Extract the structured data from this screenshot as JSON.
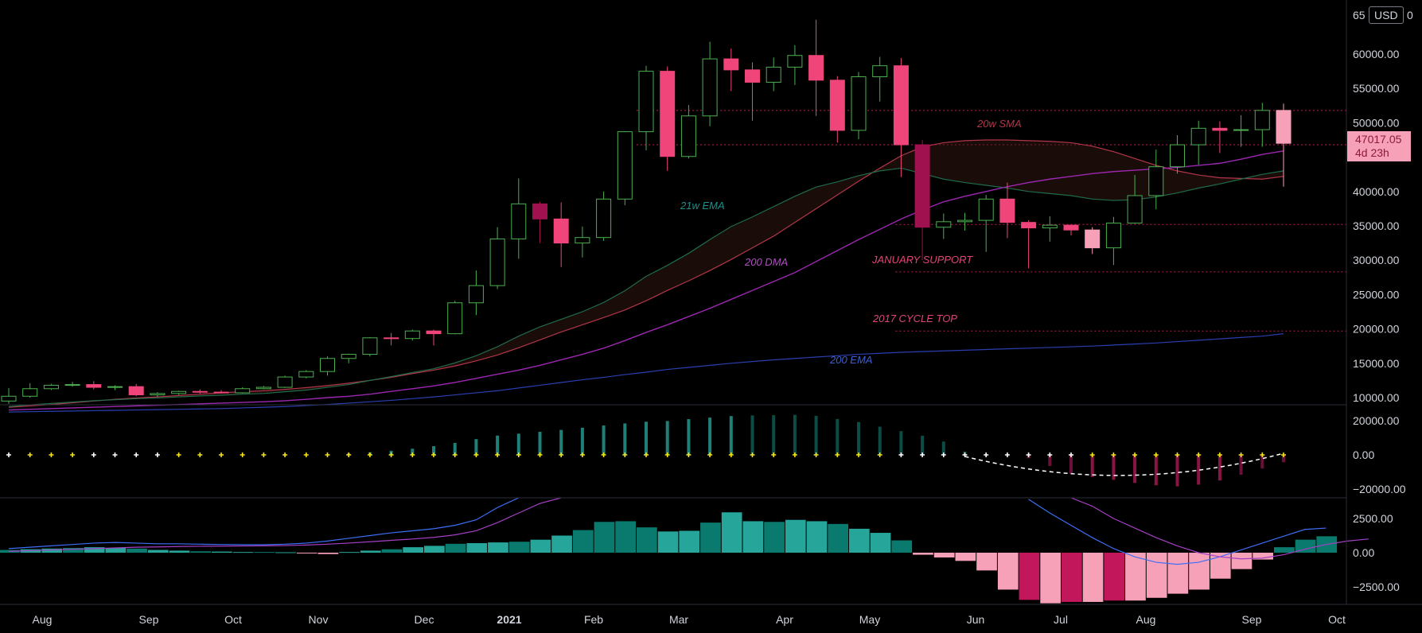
{
  "currency_badge": "USD",
  "last_price": "47017.05",
  "countdown": "4d 23h",
  "top_tick_partial": "65",
  "top_tick_tail": "0",
  "annotations": {
    "sma20w": "20w SMA",
    "ema21w": "21w EMA",
    "dma200": "200 DMA",
    "ema200": "200 EMA",
    "jan_support": "JANUARY SUPPORT",
    "cycle_top": "2017 CYCLE TOP"
  },
  "colors": {
    "background": "#000000",
    "bull_candle_border": "#4caf50",
    "bear_candle": "#f0457a",
    "bear_dark": "#a0124f",
    "light_pink": "#f7a1b8",
    "teal": "#26a69a",
    "dark_teal": "#0b7a6e",
    "magenta": "#c2185b",
    "sma_red": "#b2364a",
    "ema_green": "#1f6b4a",
    "dma_purple": "#9c27b0",
    "ema200_blue": "#2a3fb0",
    "level_line": "#c2185b"
  },
  "chart_data": [
    {
      "type": "candlestick",
      "title": "",
      "y_axis_ticks": [
        "60000.00",
        "55000.00",
        "50000.00",
        "45000.00",
        "40000.00",
        "35000.00",
        "30000.00",
        "25000.00",
        "20000.00",
        "15000.00",
        "10000.00"
      ],
      "y_axis_tick_values": [
        60000,
        55000,
        50000,
        45000,
        40000,
        35000,
        30000,
        25000,
        20000,
        15000,
        10000
      ],
      "ylim": [
        8500,
        66000
      ],
      "x_axis_ticks": [
        "Aug",
        "Sep",
        "Oct",
        "Nov",
        "Dec",
        "2021",
        "Feb",
        "Mar",
        "Apr",
        "May",
        "Jun",
        "Jul",
        "Aug",
        "Sep",
        "Oct"
      ],
      "interval": "1W",
      "candles": [
        [
          9500,
          11400,
          9100,
          10200
        ],
        [
          10200,
          12100,
          10000,
          11300
        ],
        [
          11300,
          12000,
          11100,
          11800
        ],
        [
          11800,
          12300,
          11600,
          11900
        ],
        [
          11900,
          12400,
          11200,
          11500
        ],
        [
          11500,
          11800,
          11100,
          11600
        ],
        [
          11600,
          12000,
          10200,
          10400
        ],
        [
          10400,
          10800,
          10100,
          10600
        ],
        [
          10600,
          11000,
          10400,
          10900
        ],
        [
          10900,
          11200,
          10600,
          10800
        ],
        [
          10800,
          11100,
          10600,
          10700
        ],
        [
          10700,
          11500,
          10600,
          11300
        ],
        [
          11300,
          11700,
          11200,
          11500
        ],
        [
          11500,
          13200,
          11400,
          13000
        ],
        [
          13000,
          14000,
          12800,
          13800
        ],
        [
          13800,
          16000,
          13200,
          15700
        ],
        [
          15700,
          16400,
          15000,
          16300
        ],
        [
          16300,
          18800,
          16000,
          18700
        ],
        [
          18700,
          19400,
          17600,
          18600
        ],
        [
          18600,
          19900,
          18300,
          19700
        ],
        [
          19700,
          19900,
          17600,
          19300
        ],
        [
          19300,
          24100,
          19200,
          23800
        ],
        [
          23800,
          28500,
          22000,
          26300
        ],
        [
          26300,
          34800,
          25800,
          33100
        ],
        [
          33100,
          41900,
          30200,
          38200
        ],
        [
          38200,
          38500,
          32500,
          36000
        ],
        [
          36000,
          38400,
          29000,
          32500
        ],
        [
          32500,
          34900,
          30400,
          33300
        ],
        [
          33300,
          40000,
          32800,
          38900
        ],
        [
          38900,
          48800,
          38000,
          48700
        ],
        [
          48700,
          58300,
          46000,
          57500
        ],
        [
          57500,
          58200,
          43000,
          45100
        ],
        [
          45100,
          52600,
          44800,
          51000
        ],
        [
          51000,
          61800,
          49500,
          59300
        ],
        [
          59300,
          60800,
          54600,
          57700
        ],
        [
          57700,
          58800,
          50300,
          55900
        ],
        [
          55900,
          59500,
          54600,
          58100
        ],
        [
          58100,
          61300,
          55500,
          59800
        ],
        [
          59800,
          65000,
          51000,
          56200
        ],
        [
          56200,
          56800,
          47100,
          48900
        ],
        [
          48900,
          57400,
          47600,
          56700
        ],
        [
          56700,
          59600,
          53100,
          58300
        ],
        [
          58300,
          59400,
          42100,
          46800
        ],
        [
          46800,
          47500,
          30000,
          34800
        ],
        [
          34800,
          36800,
          33100,
          35600
        ],
        [
          35600,
          36900,
          34300,
          35800
        ],
        [
          35800,
          39500,
          31200,
          38900
        ],
        [
          38900,
          41300,
          33200,
          35500
        ],
        [
          35500,
          35800,
          28800,
          34700
        ],
        [
          34700,
          36400,
          32700,
          35100
        ],
        [
          35100,
          35100,
          33600,
          34400
        ],
        [
          34400,
          34800,
          30900,
          31800
        ],
        [
          31800,
          36300,
          29300,
          35400
        ],
        [
          35400,
          42400,
          35300,
          39400
        ],
        [
          39400,
          46100,
          37400,
          43600
        ],
        [
          43600,
          48200,
          42600,
          46800
        ],
        [
          46800,
          50300,
          43900,
          49200
        ],
        [
          49200,
          50200,
          45600,
          48900
        ],
        [
          48900,
          51100,
          46500,
          49000
        ],
        [
          49000,
          52900,
          46500,
          51800
        ],
        [
          51800,
          52800,
          40700,
          47017
        ]
      ],
      "series": [
        {
          "name": "20w SMA",
          "values": [
            8600,
            8800,
            9000,
            9250,
            9500,
            9750,
            9950,
            10100,
            10300,
            10500,
            10700,
            10850,
            11000,
            11200,
            11450,
            11750,
            12100,
            12500,
            12950,
            13500,
            14000,
            14600,
            15350,
            16200,
            17250,
            18400,
            19550,
            20600,
            21650,
            22750,
            24100,
            25600,
            27000,
            28500,
            30100,
            31800,
            33500,
            35500,
            37500,
            39500,
            41500,
            43400,
            45200,
            46500,
            47100,
            47400,
            47500,
            47500,
            47400,
            47300,
            47100,
            46600,
            45800,
            44800,
            43800,
            43000,
            42400,
            42000,
            41900,
            41800,
            42200
          ]
        },
        {
          "name": "21w EMA",
          "values": [
            8700,
            8950,
            9150,
            9350,
            9550,
            9700,
            9850,
            9950,
            10100,
            10250,
            10350,
            10500,
            10600,
            10850,
            11100,
            11500,
            11900,
            12500,
            13050,
            13650,
            14200,
            15050,
            16100,
            17400,
            18950,
            20300,
            21400,
            22500,
            23850,
            25550,
            27650,
            29250,
            31000,
            33000,
            34900,
            36300,
            37800,
            39300,
            40650,
            41400,
            42300,
            43000,
            43400,
            42600,
            41800,
            41300,
            40900,
            40500,
            40000,
            39700,
            39400,
            38900,
            38700,
            38800,
            39200,
            39800,
            40500,
            41100,
            41800,
            42500,
            43000
          ]
        },
        {
          "name": "200 DMA",
          "values": [
            8200,
            8300,
            8400,
            8500,
            8600,
            8700,
            8800,
            8900,
            9000,
            9100,
            9200,
            9300,
            9400,
            9550,
            9750,
            10000,
            10200,
            10500,
            10900,
            11300,
            11700,
            12200,
            12800,
            13400,
            14000,
            14700,
            15500,
            16300,
            17200,
            18300,
            19500,
            20600,
            21800,
            23000,
            24300,
            25600,
            26900,
            28200,
            29800,
            31400,
            33000,
            34500,
            36000,
            37300,
            38500,
            39300,
            40000,
            40700,
            41300,
            41800,
            42200,
            42600,
            42900,
            43100,
            43300,
            43500,
            43800,
            44100,
            44700,
            45400,
            45900
          ]
        },
        {
          "name": "200 EMA",
          "values": [
            7900,
            7950,
            8000,
            8050,
            8100,
            8150,
            8200,
            8250,
            8300,
            8350,
            8400,
            8500,
            8600,
            8700,
            8850,
            9000,
            9200,
            9400,
            9600,
            9850,
            10100,
            10400,
            10700,
            11000,
            11400,
            11800,
            12200,
            12600,
            12950,
            13350,
            13700,
            14100,
            14400,
            14700,
            15000,
            15250,
            15500,
            15700,
            15900,
            16100,
            16300,
            16450,
            16600,
            16700,
            16800,
            16900,
            17000,
            17100,
            17200,
            17300,
            17400,
            17500,
            17650,
            17800,
            17950,
            18150,
            18350,
            18550,
            18750,
            18950,
            19300
          ]
        }
      ],
      "levels": [
        {
          "name": "JANUARY SUPPORT",
          "value": 28300
        },
        {
          "name": "2017 CYCLE TOP",
          "value": 19700
        },
        {
          "name": "",
          "value": 35200
        },
        {
          "name": "",
          "value": 46800
        },
        {
          "name": "",
          "value": 51800
        }
      ]
    },
    {
      "type": "bar",
      "title": "",
      "y_axis_ticks": [
        "20000.00",
        "0.00",
        "−20000.00"
      ],
      "y_axis_tick_values": [
        20000,
        0,
        -20000
      ],
      "ylim": [
        -24500,
        25500
      ],
      "values": [
        0,
        0,
        0,
        0,
        0,
        0,
        0,
        0,
        0,
        0,
        0,
        0,
        0,
        0,
        0,
        0,
        800,
        1500,
        2400,
        3600,
        5100,
        7000,
        9200,
        11300,
        12400,
        13500,
        14600,
        15900,
        17200,
        18400,
        19400,
        19800,
        20900,
        21800,
        22700,
        23100,
        23200,
        23400,
        22800,
        21000,
        19200,
        16500,
        13900,
        11200,
        7800,
        2000,
        0,
        0,
        -2000,
        -6500,
        -11000,
        -13000,
        -14600,
        -16400,
        -17800,
        -18400,
        -17400,
        -15000,
        -11600,
        -8000,
        -4300
      ],
      "markers": [
        "white",
        "yellow",
        "yellow",
        "yellow",
        "white",
        "white",
        "white",
        "white",
        "yellow",
        "yellow",
        "yellow",
        "yellow",
        "yellow",
        "yellow",
        "yellow",
        "yellow",
        "yellow",
        "yellow",
        "yellow",
        "yellow",
        "yellow",
        "yellow",
        "yellow",
        "yellow",
        "yellow",
        "yellow",
        "yellow",
        "yellow",
        "yellow",
        "yellow",
        "yellow",
        "yellow",
        "yellow",
        "yellow",
        "yellow",
        "yellow",
        "yellow",
        "yellow",
        "yellow",
        "yellow",
        "yellow",
        "yellow",
        "white",
        "white",
        "white",
        "white",
        "white",
        "white",
        "white",
        "white",
        "white",
        "yellow",
        "yellow",
        "yellow",
        "yellow",
        "yellow",
        "yellow",
        "yellow",
        "yellow",
        "yellow",
        "yellow"
      ]
    },
    {
      "type": "bar",
      "title": "",
      "y_axis_ticks": [
        "2500.00",
        "0.00",
        "−2500.00"
      ],
      "y_axis_tick_values": [
        2500,
        0,
        -2500
      ],
      "ylim": [
        -3600,
        3800
      ],
      "values": [
        200,
        250,
        300,
        350,
        400,
        350,
        300,
        200,
        150,
        100,
        80,
        50,
        50,
        30,
        -50,
        -100,
        50,
        150,
        250,
        400,
        500,
        650,
        700,
        750,
        800,
        950,
        1250,
        1650,
        2250,
        2300,
        1850,
        1550,
        1600,
        2200,
        2950,
        2300,
        2250,
        2400,
        2300,
        2100,
        1750,
        1450,
        900,
        -150,
        -350,
        -600,
        -1300,
        -2700,
        -3450,
        -3700,
        -3600,
        -3600,
        -3500,
        -3500,
        -3300,
        -3000,
        -2700,
        -1900,
        -1200,
        -500,
        400,
        950,
        1200
      ]
    },
    {
      "type": "line",
      "title": "",
      "series": [
        {
          "name": "",
          "values": [
            300,
            400,
            500,
            600,
            700,
            750,
            700,
            650,
            650,
            620,
            600,
            580,
            580,
            620,
            700,
            850,
            1050,
            1250,
            1450,
            1600,
            1750,
            2000,
            2400,
            3300,
            4200,
            null,
            null,
            null,
            null,
            null,
            null,
            null,
            null,
            null,
            null,
            null,
            null,
            null,
            null,
            null,
            null,
            null,
            null,
            null,
            null,
            null,
            null,
            null,
            3900,
            2900,
            2000,
            1100,
            300,
            -300,
            -700,
            -850,
            -700,
            -300,
            200,
            700,
            1200,
            1700,
            1800
          ]
        },
        {
          "name": "",
          "values": [
            100,
            150,
            200,
            250,
            300,
            350,
            400,
            420,
            450,
            470,
            480,
            490,
            500,
            520,
            560,
            620,
            700,
            800,
            900,
            1000,
            1120,
            1300,
            1600,
            2200,
            2900,
            3600,
            4200,
            null,
            null,
            null,
            null,
            null,
            null,
            null,
            null,
            null,
            null,
            null,
            null,
            null,
            null,
            null,
            null,
            null,
            null,
            null,
            null,
            null,
            null,
            null,
            4200,
            3400,
            2500,
            1800,
            1100,
            500,
            0,
            -300,
            -450,
            -400,
            -150,
            250,
            600,
            850,
            1000
          ]
        }
      ]
    }
  ]
}
